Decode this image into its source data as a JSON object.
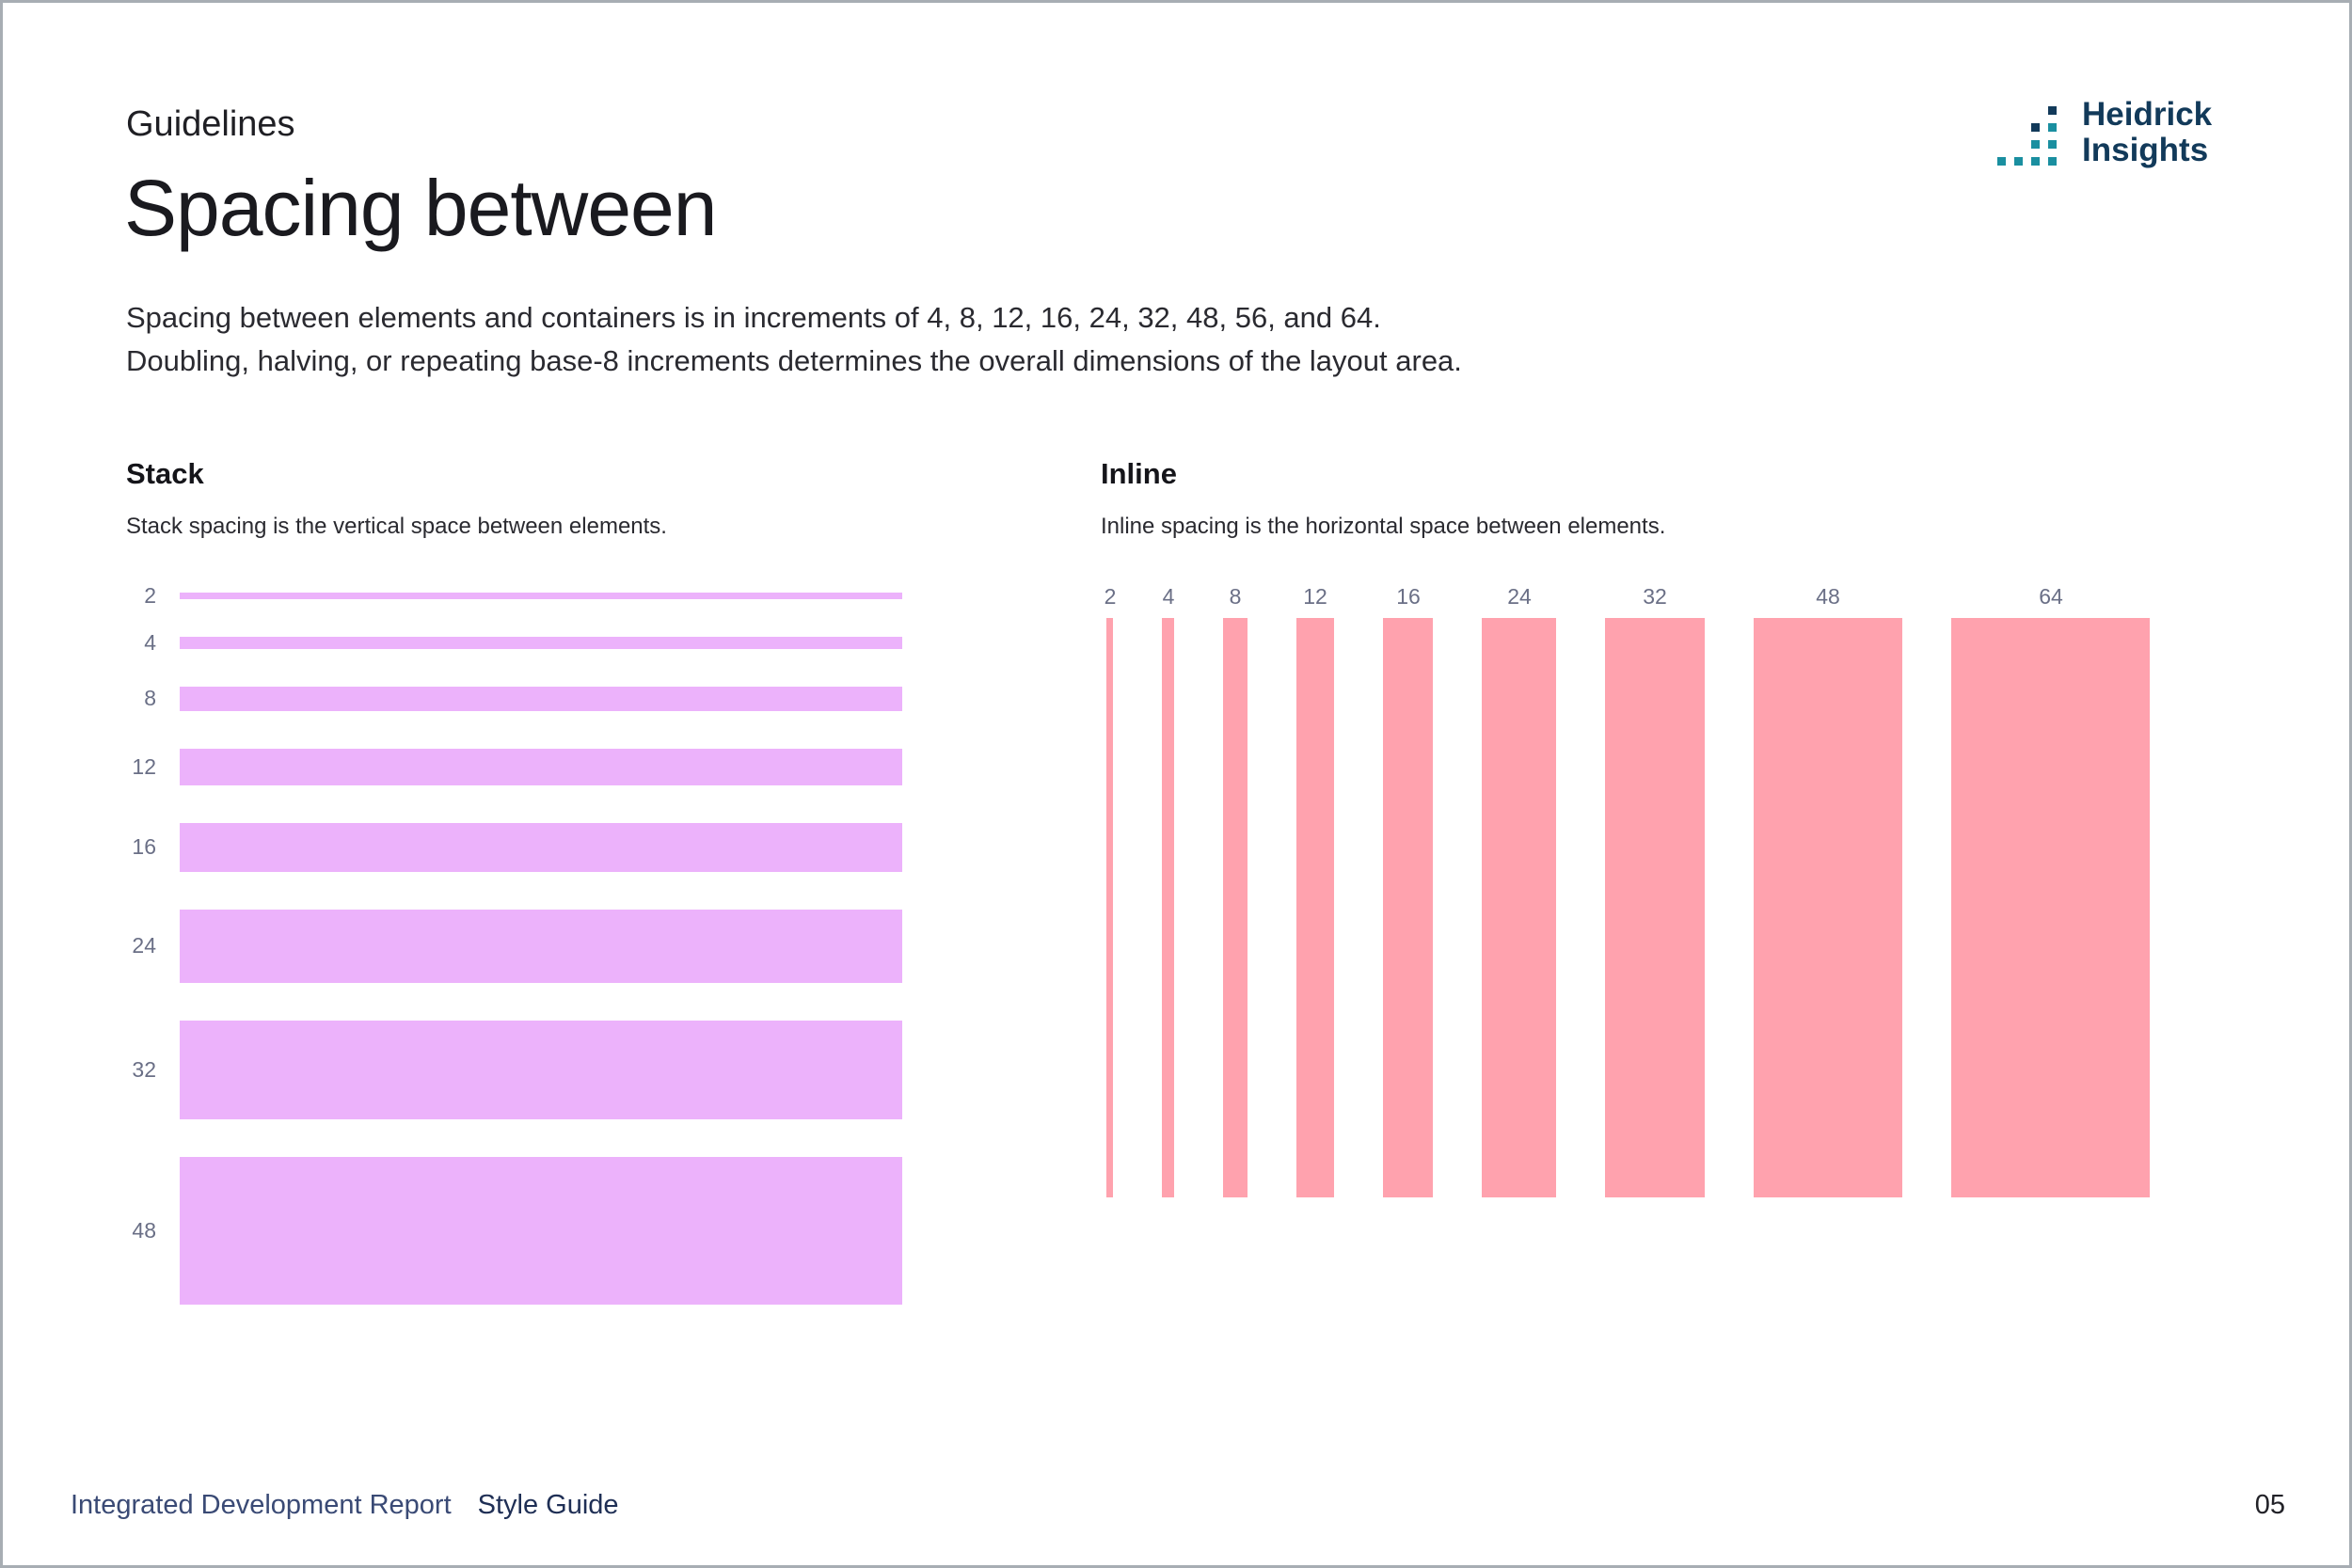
{
  "header": {
    "eyebrow": "Guidelines",
    "title": "Spacing between",
    "description_lines": [
      "Spacing between elements and containers is in increments of 4, 8, 12, 16, 24, 32, 48, 56, and 64.",
      "Doubling, halving, or repeating base-8 increments determines the overall dimensions of the layout area."
    ]
  },
  "logo": {
    "line1": "Heidrick",
    "line2": "Insights",
    "color": "#123a5a",
    "accent": "#1a8fa0"
  },
  "stack": {
    "title": "Stack",
    "description": "Stack spacing is the vertical space between elements.",
    "color": "#ecb2fb",
    "items": [
      {
        "label": "2",
        "value": 2
      },
      {
        "label": "4",
        "value": 4
      },
      {
        "label": "8",
        "value": 8
      },
      {
        "label": "12",
        "value": 12
      },
      {
        "label": "16",
        "value": 16
      },
      {
        "label": "24",
        "value": 24
      },
      {
        "label": "32",
        "value": 32
      },
      {
        "label": "48",
        "value": 48
      }
    ]
  },
  "inline": {
    "title": "Inline",
    "description": "Inline spacing is the horizontal space between elements.",
    "color": "#ffa2ae",
    "items": [
      {
        "label": "2",
        "value": 2
      },
      {
        "label": "4",
        "value": 4
      },
      {
        "label": "8",
        "value": 8
      },
      {
        "label": "12",
        "value": 12
      },
      {
        "label": "16",
        "value": 16
      },
      {
        "label": "24",
        "value": 24
      },
      {
        "label": "32",
        "value": 32
      },
      {
        "label": "48",
        "value": 48
      },
      {
        "label": "64",
        "value": 64
      }
    ]
  },
  "footer": {
    "report": "Integrated Development Report",
    "guide": "Style Guide",
    "page_number": "05"
  }
}
